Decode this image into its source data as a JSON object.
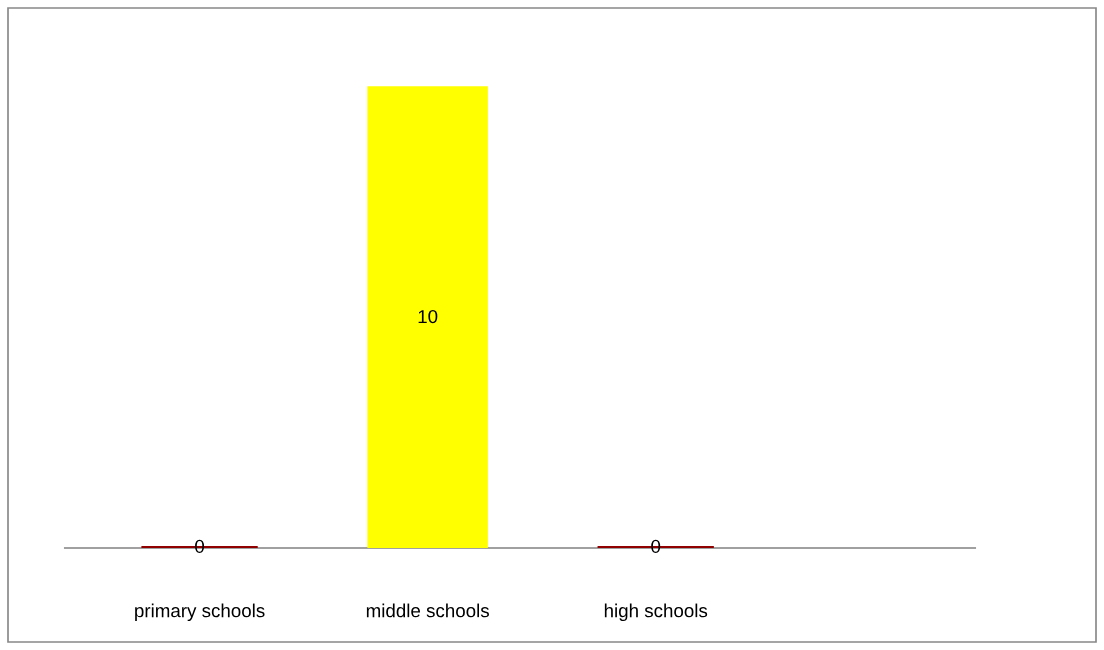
{
  "chart_data": {
    "type": "bar",
    "categories": [
      "primary schools",
      "middle schools",
      "high schools"
    ],
    "values": [
      0,
      10,
      0
    ],
    "colors": [
      "#900000",
      "#ffff00",
      "#900000"
    ],
    "data_labels": true,
    "grid": false,
    "legend": false
  }
}
